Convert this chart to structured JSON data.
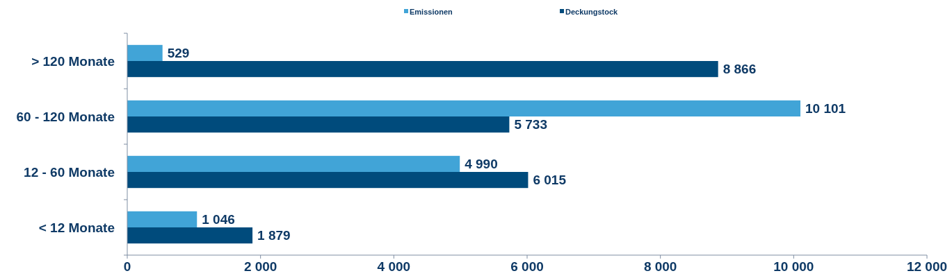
{
  "chart_data": {
    "type": "bar",
    "orientation": "horizontal",
    "categories": [
      "> 120 Monate",
      "60 - 120 Monate",
      "12 - 60 Monate",
      "< 12 Monate"
    ],
    "series": [
      {
        "name": "Emissionen",
        "color": "#41a4d7",
        "values": [
          529,
          10101,
          4990,
          1046
        ],
        "value_labels": [
          "529",
          "10 101",
          "4 990",
          "1 046"
        ]
      },
      {
        "name": "Deckungstock",
        "color": "#004b7c",
        "values": [
          8866,
          5733,
          6015,
          1879
        ],
        "value_labels": [
          "8 866",
          "5 733",
          "6 015",
          "1 879"
        ]
      }
    ],
    "xlim": [
      0,
      12000
    ],
    "xticks": [
      0,
      {
        "value": 2000,
        "label": "2 000"
      },
      {
        "value": 4000,
        "label": "4 000"
      },
      {
        "value": 6000,
        "label": "6 000"
      },
      {
        "value": 8000,
        "label": "8 000"
      },
      {
        "value": 10000,
        "label": "10 000"
      },
      {
        "value": 12000,
        "label": "12 000"
      }
    ],
    "legend": "top",
    "grid": false
  }
}
